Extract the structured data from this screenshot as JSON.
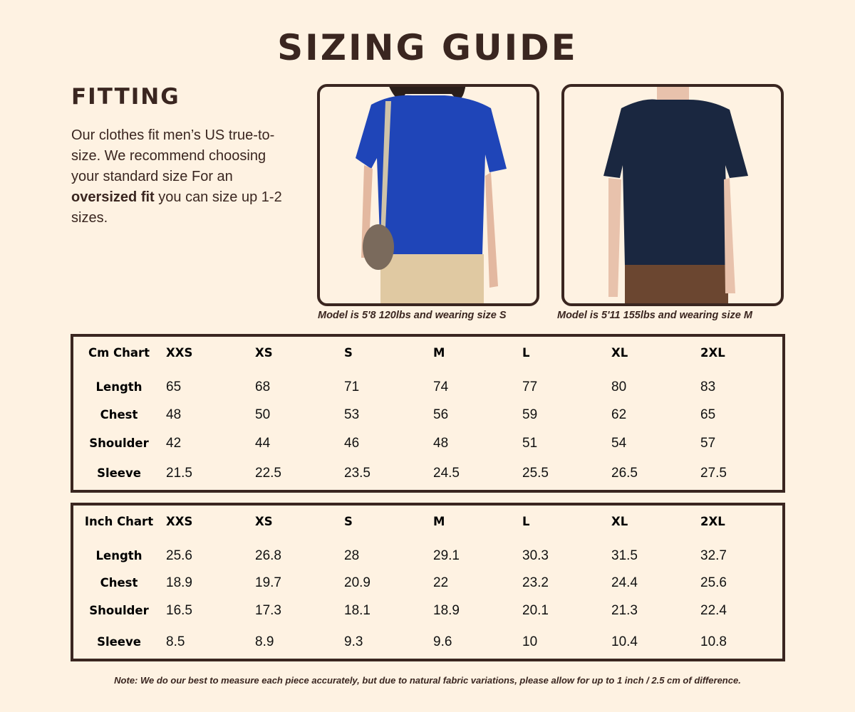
{
  "header": {
    "title": "SIZING GUIDE"
  },
  "fitting": {
    "heading": "FITTING",
    "text_part1": "Our clothes fit men’s US true-to-size. We recommend choosing your standard size For an ",
    "text_bold": "oversized fit",
    "text_part2": " you can size up 1-2 sizes."
  },
  "models": [
    {
      "caption": "Model is 5'8 120lbs and wearing size S",
      "shirt_color": "#1f45b8",
      "pants_color": "#e0c9a2"
    },
    {
      "caption": "Model is 5'11 155lbs and wearing size M",
      "shirt_color": "#1a2740",
      "pants_color": "#6b4630"
    }
  ],
  "tables": [
    {
      "title": "Cm Chart",
      "sizes": [
        "XXS",
        "XS",
        "S",
        "M",
        "L",
        "XL",
        "2XL"
      ],
      "rows": [
        {
          "label": "Length",
          "values": [
            "65",
            "68",
            "71",
            "74",
            "77",
            "80",
            "83"
          ]
        },
        {
          "label": "Chest",
          "values": [
            "48",
            "50",
            "53",
            "56",
            "59",
            "62",
            "65"
          ]
        },
        {
          "label": "Shoulder",
          "values": [
            "42",
            "44",
            "46",
            "48",
            "51",
            "54",
            "57"
          ]
        },
        {
          "label": "Sleeve",
          "values": [
            "21.5",
            "22.5",
            "23.5",
            "24.5",
            "25.5",
            "26.5",
            "27.5"
          ]
        }
      ]
    },
    {
      "title": "Inch Chart",
      "sizes": [
        "XXS",
        "XS",
        "S",
        "M",
        "L",
        "XL",
        "2XL"
      ],
      "rows": [
        {
          "label": "Length",
          "values": [
            "25.6",
            "26.8",
            "28",
            "29.1",
            "30.3",
            "31.5",
            "32.7"
          ]
        },
        {
          "label": "Chest",
          "values": [
            "18.9",
            "19.7",
            "20.9",
            "22",
            "23.2",
            "24.4",
            "25.6"
          ]
        },
        {
          "label": "Shoulder",
          "values": [
            "16.5",
            "17.3",
            "18.1",
            "18.9",
            "20.1",
            "21.3",
            "22.4"
          ]
        },
        {
          "label": "Sleeve",
          "values": [
            "8.5",
            "8.9",
            "9.3",
            "9.6",
            "10",
            "10.4",
            "10.8"
          ]
        }
      ]
    }
  ],
  "note": "Note: We do our best to measure each piece accurately, but due to natural fabric variations, please allow for up to 1 inch / 2.5 cm of difference.",
  "colors": {
    "background": "#fef2e2",
    "brown": "#3a2620"
  }
}
